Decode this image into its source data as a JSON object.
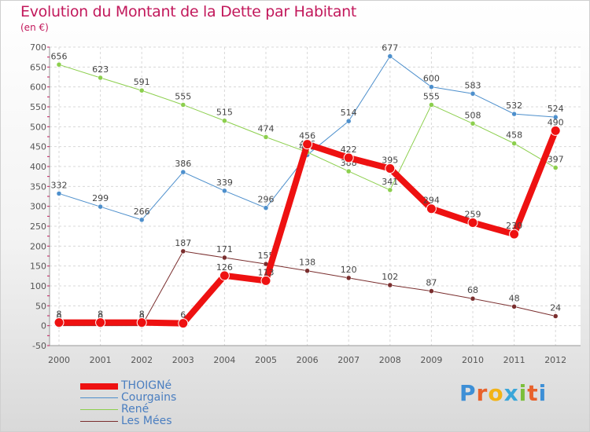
{
  "title": "Evolution du Montant de la Dette par Habitant",
  "unit_label": "(en €)",
  "logo": {
    "text": "Proxiti",
    "colors": [
      "#3d8fd6",
      "#e8622c",
      "#f2b316",
      "#3aa6d9",
      "#7bbf3a",
      "#e8622c",
      "#3d8fd6"
    ]
  },
  "chart_data": {
    "type": "line",
    "title": "Evolution du Montant de la Dette par Habitant",
    "ylabel": "(en €)",
    "x": [
      2000,
      2001,
      2002,
      2003,
      2004,
      2005,
      2006,
      2007,
      2008,
      2009,
      2010,
      2011,
      2012
    ],
    "ylim": [
      -50,
      700
    ],
    "yticks": [
      -50,
      0,
      50,
      100,
      150,
      200,
      250,
      300,
      350,
      400,
      450,
      500,
      550,
      600,
      650,
      700
    ],
    "grid": true,
    "legend_position": "bottom-left",
    "series": [
      {
        "name": "Courgains",
        "color": "#4d8fcc",
        "width": 1,
        "values": [
          332,
          299,
          266,
          386,
          339,
          296,
          429,
          514,
          677,
          600,
          583,
          532,
          524
        ],
        "labels": [
          "332",
          "299",
          "266",
          "386",
          "339",
          "296",
          "429",
          "514",
          "677",
          "600",
          "583",
          "532",
          "524"
        ]
      },
      {
        "name": "René",
        "color": "#8ccf4d",
        "width": 1,
        "values": [
          656,
          623,
          591,
          555,
          515,
          474,
          436,
          388,
          341,
          555,
          508,
          458,
          397
        ],
        "labels": [
          "656",
          "623",
          "591",
          "555",
          "515",
          "474",
          "436",
          "388",
          "341",
          "555",
          "508",
          "458",
          "397"
        ]
      },
      {
        "name": "Les Mées",
        "color": "#7a2e2e",
        "width": 1,
        "values": [
          0,
          0,
          0,
          187,
          171,
          155,
          138,
          120,
          102,
          87,
          68,
          48,
          24
        ],
        "labels": [
          "0",
          "0",
          "0",
          "187",
          "171",
          "155",
          "138",
          "120",
          "102",
          "87",
          "68",
          "48",
          "24"
        ]
      },
      {
        "name": "THOIGNé",
        "color": "#ee1111",
        "width": 8,
        "values": [
          8,
          8,
          8,
          6,
          126,
          113,
          456,
          422,
          395,
          294,
          259,
          230,
          490
        ],
        "labels": [
          "8",
          "8",
          "8",
          "6",
          "126",
          "113",
          "456",
          "422",
          "395",
          "294",
          "259",
          "230",
          "490"
        ]
      }
    ]
  }
}
